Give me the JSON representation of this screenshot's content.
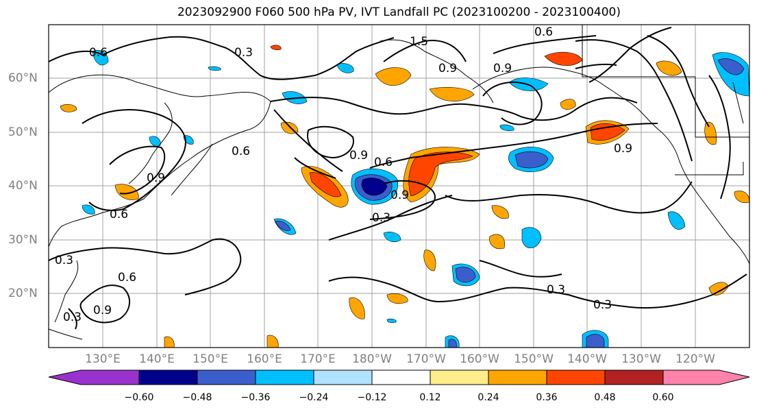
{
  "title": "2023092900 F060 500 hPa PV, IVT Landfall PC (2023100200 - 2023100400)",
  "map": {
    "lat_labels": [
      "60°N",
      "50°N",
      "40°N",
      "30°N",
      "20°N"
    ],
    "lon_labels": [
      "130°E",
      "140°E",
      "150°E",
      "160°E",
      "170°E",
      "180°W",
      "170°W",
      "160°W",
      "150°W",
      "140°W",
      "130°W",
      "120°W"
    ],
    "contour_labels": [
      "1.5",
      "0.6",
      "0.9",
      "0.6",
      "0.6",
      "0.9",
      "0.9",
      "0.3",
      "0.6",
      "0.9",
      "0.3",
      "0.3",
      "0.9",
      "0.6",
      "0.3",
      "0.3",
      "0.3",
      "0.6",
      "0.9",
      "0.9"
    ]
  },
  "colorbar": {
    "ticks": [
      "−0.60",
      "−0.48",
      "−0.36",
      "−0.24",
      "−0.12",
      "0.12",
      "0.24",
      "0.36",
      "0.48",
      "0.60"
    ],
    "colors": [
      "#9932cc",
      "#00008b",
      "#3a5fcd",
      "#00bfff",
      "#b0e2ff",
      "#ffffff",
      "#ffec8b",
      "#ffa500",
      "#ff4500",
      "#b22222",
      "#ff82ab"
    ]
  }
}
